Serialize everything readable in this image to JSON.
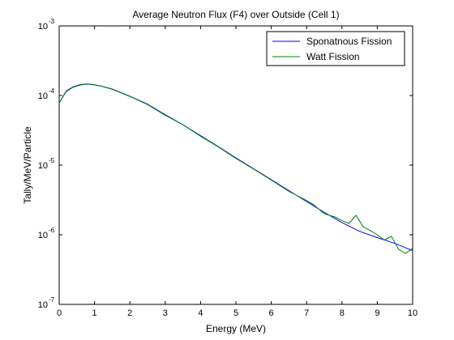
{
  "chart_data": {
    "type": "line",
    "title": "Average Neutron Flux (F4) over Outside (Cell 1)",
    "xlabel": "Energy (MeV)",
    "ylabel": "Tally/MeV/Particle",
    "xlim": [
      0,
      10
    ],
    "ylim": [
      1e-07,
      0.001
    ],
    "yscale": "log",
    "grid": false,
    "legend_position": "top-right",
    "x_ticks": [
      "0",
      "1",
      "2",
      "3",
      "4",
      "5",
      "6",
      "7",
      "8",
      "9",
      "10"
    ],
    "y_ticks": [
      {
        "base": "10",
        "exp": "-7"
      },
      {
        "base": "10",
        "exp": "-6"
      },
      {
        "base": "10",
        "exp": "-5"
      },
      {
        "base": "10",
        "exp": "-4"
      },
      {
        "base": "10",
        "exp": "-3"
      }
    ],
    "series": [
      {
        "name": "Sponatnous Fission",
        "color": "#0000ff",
        "x": [
          0.0,
          0.2,
          0.4,
          0.6,
          0.8,
          1.0,
          1.2,
          1.5,
          2.0,
          2.5,
          3.0,
          3.5,
          4.0,
          4.5,
          5.0,
          5.5,
          6.0,
          6.5,
          7.0,
          7.5,
          8.0,
          8.5,
          9.0,
          9.5,
          10.0
        ],
        "y": [
          7.8e-05,
          0.000115,
          0.000132,
          0.000142,
          0.000146,
          0.000142,
          0.000136,
          0.000124,
          9.8e-05,
          7.5e-05,
          5.3e-05,
          3.8e-05,
          2.65e-05,
          1.85e-05,
          1.27e-05,
          8.9e-06,
          6.2e-06,
          4.3e-06,
          3e-06,
          2.1e-06,
          1.5e-06,
          1.12e-06,
          9.1e-07,
          7.5e-07,
          5.9e-07
        ]
      },
      {
        "name": "Watt Fission",
        "color": "#008000",
        "x": [
          0.0,
          0.2,
          0.4,
          0.6,
          0.8,
          1.0,
          1.2,
          1.5,
          2.0,
          2.5,
          3.0,
          3.5,
          4.0,
          4.5,
          5.0,
          5.5,
          6.0,
          6.5,
          7.0,
          7.2,
          7.5,
          7.8,
          8.0,
          8.2,
          8.4,
          8.6,
          8.8,
          9.0,
          9.2,
          9.4,
          9.6,
          9.8,
          10.0
        ],
        "y": [
          7.8e-05,
          0.000117,
          0.000134,
          0.000144,
          0.000147,
          0.000143,
          0.000136,
          0.000123,
          9.7e-05,
          7.4e-05,
          5.2e-05,
          3.8e-05,
          2.6e-05,
          1.83e-05,
          1.25e-05,
          8.8e-06,
          6.1e-06,
          4.2e-06,
          3.1e-06,
          2.7e-06,
          2e-06,
          1.8e-06,
          1.6e-06,
          1.45e-06,
          1.9e-06,
          1.3e-06,
          1.15e-06,
          1e-06,
          8.4e-07,
          9.5e-07,
          6.2e-07,
          5.4e-07,
          6.4e-07
        ]
      }
    ]
  }
}
